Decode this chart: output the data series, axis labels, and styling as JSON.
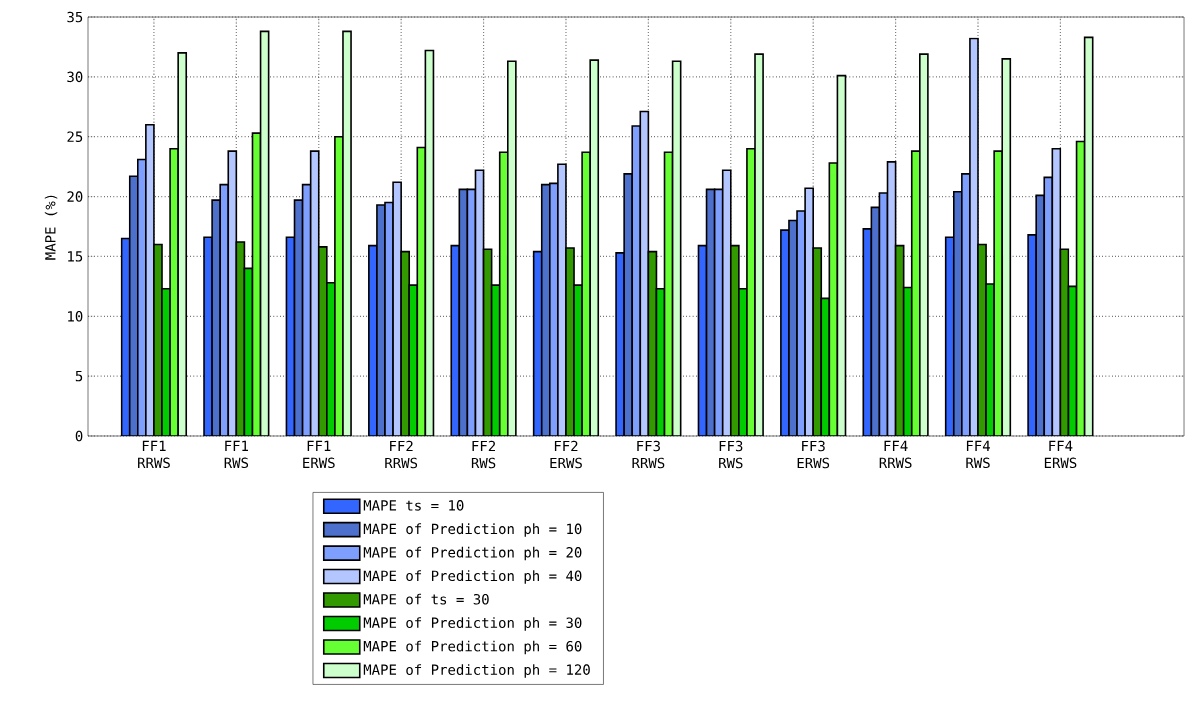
{
  "chart_data": {
    "type": "bar",
    "ylabel": "MAPE (%)",
    "categories": [
      "FF1 RRWS",
      "FF1 RWS",
      "FF1 ERWS",
      "FF2 RRWS",
      "FF2 RWS",
      "FF2 ERWS",
      "FF3 RRWS",
      "FF3 RWS",
      "FF3 ERWS",
      "FF4 RRWS",
      "FF4 RWS",
      "FF4 ERWS"
    ],
    "series": [
      {
        "name": "MAPE ts = 10",
        "color": "#3366ff",
        "values": [
          16.5,
          16.6,
          16.6,
          15.9,
          15.9,
          15.4,
          15.3,
          15.9,
          17.2,
          17.3,
          16.6,
          16.8
        ]
      },
      {
        "name": "MAPE of Prediction ph = 10",
        "color": "#4d70cc",
        "values": [
          21.7,
          19.7,
          19.7,
          19.3,
          20.6,
          21.0,
          21.9,
          20.6,
          18.0,
          19.1,
          20.4,
          20.1
        ]
      },
      {
        "name": "MAPE of Prediction ph = 20",
        "color": "#7f9fff",
        "values": [
          23.1,
          21.0,
          21.0,
          19.5,
          20.6,
          21.1,
          25.9,
          20.6,
          18.8,
          20.3,
          21.9,
          21.6
        ]
      },
      {
        "name": "MAPE of Prediction ph = 40",
        "color": "#b3c6ff",
        "values": [
          26.0,
          23.8,
          23.8,
          21.2,
          22.2,
          22.7,
          27.1,
          22.2,
          20.7,
          22.9,
          33.2,
          24.0
        ]
      },
      {
        "name": "MAPE of ts = 30",
        "color": "#339900",
        "values": [
          16.0,
          16.2,
          15.8,
          15.4,
          15.6,
          15.7,
          15.4,
          15.9,
          15.7,
          15.9,
          16.0,
          15.6
        ]
      },
      {
        "name": "MAPE of Prediction ph = 30",
        "color": "#00cc00",
        "values": [
          12.3,
          14.0,
          12.8,
          12.6,
          12.6,
          12.6,
          12.3,
          12.3,
          11.5,
          12.4,
          12.7,
          12.5
        ]
      },
      {
        "name": "MAPE of Prediction ph = 60",
        "color": "#66ff33",
        "values": [
          24.0,
          25.3,
          25.0,
          24.1,
          23.7,
          23.7,
          23.7,
          24.0,
          22.8,
          23.8,
          23.8,
          24.6
        ]
      },
      {
        "name": "MAPE of Prediction ph = 120",
        "color": "#ccffcc",
        "values": [
          32.0,
          33.8,
          33.8,
          32.2,
          31.3,
          31.4,
          31.3,
          31.9,
          30.1,
          31.9,
          31.5,
          33.3
        ]
      }
    ],
    "ylim": [
      0,
      35
    ],
    "yticks": [
      0,
      5,
      10,
      15,
      20,
      25,
      30,
      35
    ],
    "grid": true,
    "legend": "bottom"
  }
}
